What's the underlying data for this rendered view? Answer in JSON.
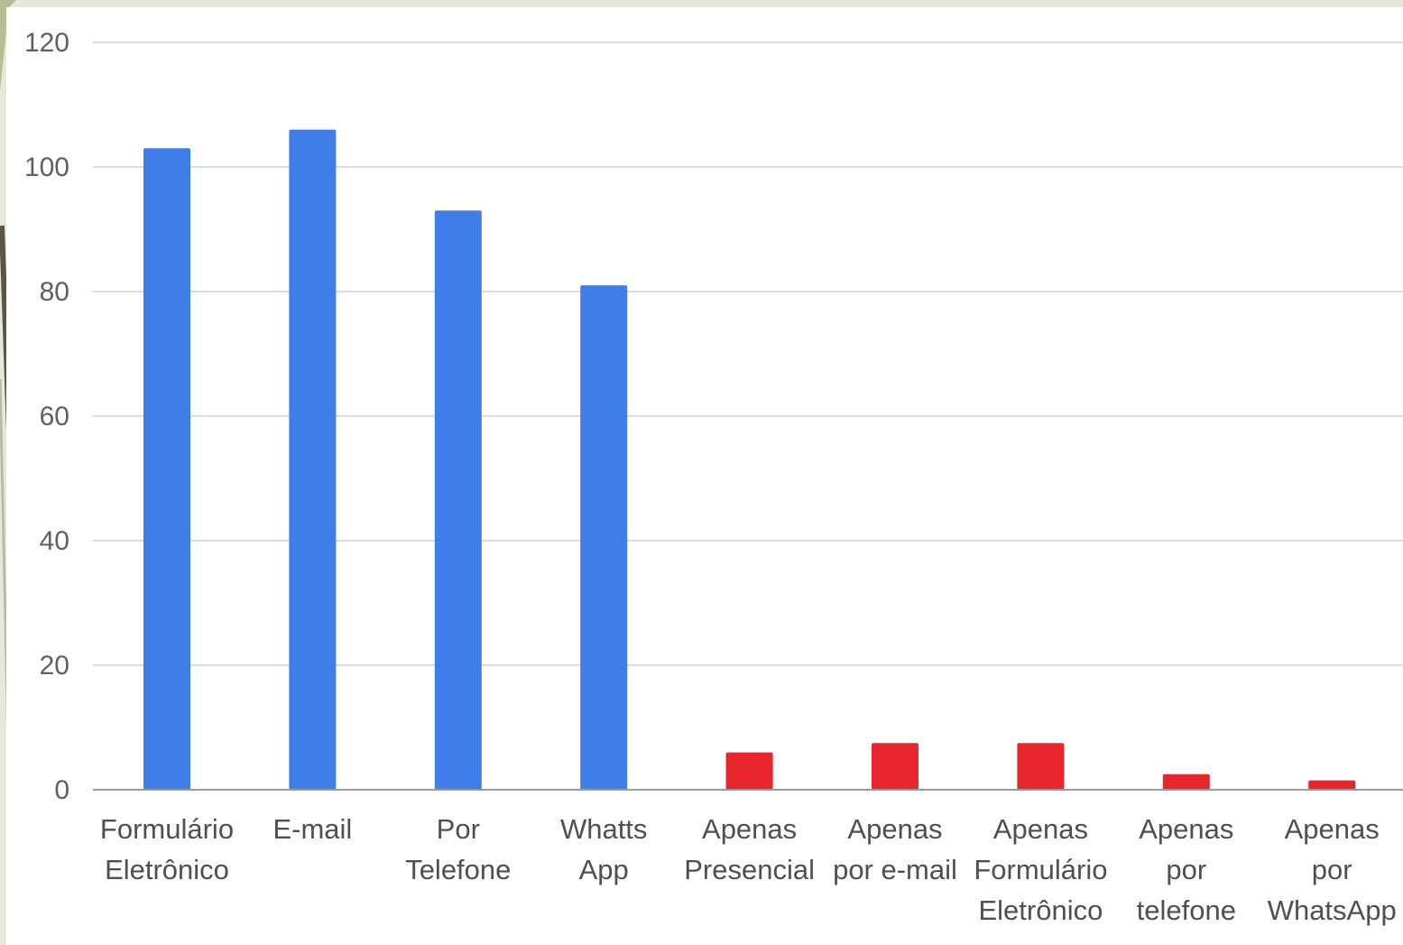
{
  "chart_data": {
    "type": "bar",
    "title": "",
    "xlabel": "",
    "ylabel": "",
    "ylim": [
      0,
      120
    ],
    "yticks": [
      0,
      20,
      40,
      60,
      80,
      100,
      120
    ],
    "ytick_labels": [
      "0",
      "20",
      "40",
      "60",
      "80",
      "100",
      "120"
    ],
    "grid": true,
    "legend": "none",
    "categories": [
      [
        "Formulário",
        "Eletrônico"
      ],
      [
        "E-mail"
      ],
      [
        "Por",
        "Telefone"
      ],
      [
        "Whatts",
        "App"
      ],
      [
        "Apenas",
        "Presencial"
      ],
      [
        "Apenas",
        "por e-mail"
      ],
      [
        "Apenas",
        "Formulário",
        "Eletrônico"
      ],
      [
        "Apenas",
        "por",
        "telefone"
      ],
      [
        "Apenas",
        "por",
        "WhatsApp"
      ]
    ],
    "values": [
      103,
      106,
      93,
      81,
      6,
      7.5,
      7.5,
      2.5,
      1.5
    ],
    "bar_colors": [
      "#3f7ee8",
      "#3f7ee8",
      "#3f7ee8",
      "#3f7ee8",
      "#e8242c",
      "#e8242c",
      "#e8242c",
      "#e8242c",
      "#e8242c"
    ]
  },
  "colors": {
    "background": "#e6e9d9",
    "panel": "#ffffff",
    "grid": "#dcdcdc",
    "axis": "#9a9a9a",
    "blue": "#3f7ee8",
    "red": "#e8242c"
  }
}
